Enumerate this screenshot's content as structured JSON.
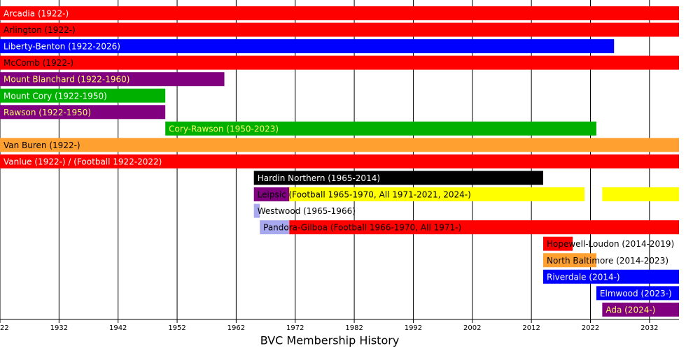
{
  "chart_data": {
    "type": "timeline",
    "title": "BVC Membership History",
    "xlim": [
      1922,
      2037
    ],
    "xticks": [
      {
        "value": 1922,
        "label": "22"
      },
      1932,
      1942,
      1952,
      1962,
      1972,
      1982,
      1992,
      2002,
      2012,
      2022,
      2032
    ],
    "grid": true,
    "rows": [
      {
        "label": "Arcadia (1922-)",
        "text_color": "#ffffff",
        "segments": [
          {
            "start": 1922,
            "end": 2037,
            "color": "#ff0000"
          }
        ]
      },
      {
        "label": "Arlington (1922-)",
        "text_color": "#000000",
        "segments": [
          {
            "start": 1922,
            "end": 2037,
            "color": "#ff0000"
          }
        ]
      },
      {
        "label": "Liberty-Benton (1922-2026)",
        "text_color": "#ffffff",
        "segments": [
          {
            "start": 1922,
            "end": 2026,
            "color": "#0000ff"
          }
        ]
      },
      {
        "label": "McComb (1922-)",
        "text_color": "#000000",
        "segments": [
          {
            "start": 1922,
            "end": 2037,
            "color": "#ff0000"
          }
        ]
      },
      {
        "label": "Mount Blanchard (1922-1960)",
        "text_color": "#ffff66",
        "segments": [
          {
            "start": 1922,
            "end": 1960,
            "color": "#800080"
          }
        ]
      },
      {
        "label": "Mount Cory (1922-1950)",
        "text_color": "#ffffff",
        "segments": [
          {
            "start": 1922,
            "end": 1950,
            "color": "#00b000"
          }
        ]
      },
      {
        "label": "Rawson (1922-1950)",
        "text_color": "#ffff66",
        "segments": [
          {
            "start": 1922,
            "end": 1950,
            "color": "#800080"
          }
        ]
      },
      {
        "label": "Cory-Rawson (1950-2023)",
        "text_color": "#ffff66",
        "segments": [
          {
            "start": 1950,
            "end": 2023,
            "color": "#00b000"
          }
        ]
      },
      {
        "label": "Van Buren (1922-)",
        "text_color": "#000000",
        "segments": [
          {
            "start": 1922,
            "end": 2037,
            "color": "#ffa030"
          }
        ]
      },
      {
        "label": "Vanlue (1922-) / (Football 1922-2022)",
        "text_color": "#ffffff",
        "segments": [
          {
            "start": 1922,
            "end": 2037,
            "color": "#ff0000"
          }
        ]
      },
      {
        "label": "Hardin Northern (1965-2014)",
        "text_color": "#ffffff",
        "segments": [
          {
            "start": 1965,
            "end": 2014,
            "color": "#000000"
          }
        ]
      },
      {
        "label": "Leipsic (Football 1965-1970, All 1971-2021, 2024-)",
        "text_color": "#000000",
        "segments": [
          {
            "start": 1965,
            "end": 1971,
            "color": "#800080"
          },
          {
            "start": 1971,
            "end": 2021,
            "color": "#ffff00"
          },
          {
            "start": 2024,
            "end": 2037,
            "color": "#ffff00"
          }
        ]
      },
      {
        "label": "Westwood (1965-1966)",
        "text_color": "#000000",
        "segments": [
          {
            "start": 1965,
            "end": 1966,
            "color": "#a8a8f0"
          }
        ]
      },
      {
        "label": "Pandora-Gilboa (Football 1966-1970, All 1971-)",
        "text_color": "#000000",
        "segments": [
          {
            "start": 1966,
            "end": 1971,
            "color": "#a8a8f0"
          },
          {
            "start": 1971,
            "end": 2037,
            "color": "#ff0000"
          }
        ]
      },
      {
        "label": "Hopewell-Loudon (2014-2019)",
        "text_color": "#000000",
        "segments": [
          {
            "start": 2014,
            "end": 2019,
            "color": "#ff0000"
          }
        ]
      },
      {
        "label": "North Baltimore (2014-2023)",
        "text_color": "#000000",
        "segments": [
          {
            "start": 2014,
            "end": 2023,
            "color": "#ffa030"
          }
        ]
      },
      {
        "label": "Riverdale (2014-)",
        "text_color": "#ffffff",
        "segments": [
          {
            "start": 2014,
            "end": 2037,
            "color": "#0000ff"
          }
        ]
      },
      {
        "label": "Elmwood (2023-)",
        "text_color": "#ffffff",
        "segments": [
          {
            "start": 2023,
            "end": 2037,
            "color": "#0000ff"
          }
        ]
      },
      {
        "label": "Ada (2024-)",
        "text_color": "#ffff66",
        "segments": [
          {
            "start": 2024,
            "end": 2037,
            "color": "#800080"
          }
        ]
      }
    ]
  }
}
